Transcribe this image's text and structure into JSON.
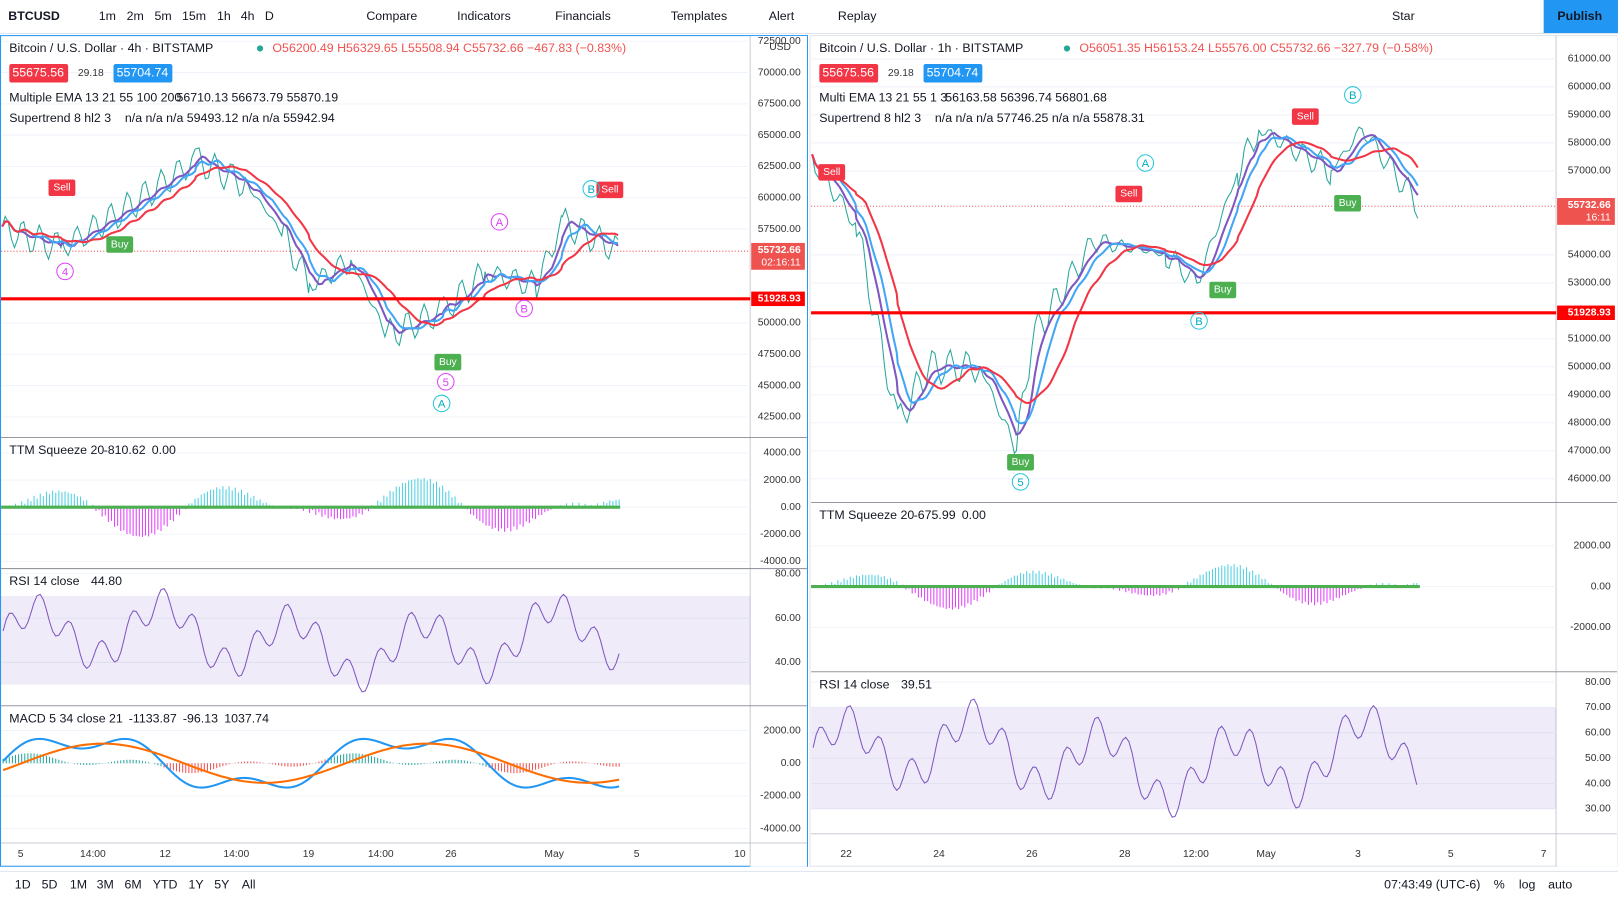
{
  "toolbar": {
    "symbol": "BTCUSD",
    "intervals": [
      "1m",
      "2m",
      "5m",
      "15m",
      "1h",
      "4h",
      "D"
    ],
    "buttons": [
      "Compare",
      "Indicators",
      "Financials",
      "Templates",
      "Alert",
      "Replay"
    ],
    "star": "Star",
    "publish": "Publish"
  },
  "left": {
    "title": "Bitcoin / U.S. Dollar · 4h · BITSTAMP",
    "ohlc": "O56200.49 H56329.65 L55508.94 C55732.66 −467.83 (−0.83%)",
    "bid": "55675.56",
    "spread": "29.18",
    "ask": "55704.74",
    "ema": {
      "name": "Multiple EMA 13 21 55 100 200",
      "values": "56710.13  56673.79  55870.19"
    },
    "supertrend": {
      "name": "Supertrend 8 hl2 3",
      "values": "n/a n/a n/a 59493.12 n/a n/a 55942.94"
    },
    "currency": "USD",
    "price_ticks": [
      {
        "value": 72500,
        "label": "72500.00"
      },
      {
        "value": 70000,
        "label": "70000.00"
      },
      {
        "value": 67500,
        "label": "67500.00"
      },
      {
        "value": 65000,
        "label": "65000.00"
      },
      {
        "value": 62500,
        "label": "62500.00"
      },
      {
        "value": 60000,
        "label": "60000.00"
      },
      {
        "value": 57500,
        "label": "57500.00"
      },
      {
        "value": 50000,
        "label": "50000.00"
      },
      {
        "value": 47500,
        "label": "47500.00"
      },
      {
        "value": 45000,
        "label": "45000.00"
      },
      {
        "value": 42500,
        "label": "42500.00"
      }
    ],
    "last_price": {
      "value": 55732.66,
      "label": "55732.66",
      "countdown": "02:16:11"
    },
    "line_price": {
      "value": 51928.93,
      "label": "51928.93"
    },
    "markers": [
      "Sell",
      "Buy",
      "Buy",
      "Sell",
      "A",
      "B",
      "4",
      "5",
      "B",
      "A"
    ],
    "ttm": {
      "name": "TTM Squeeze 20",
      "values": [
        "-810.62",
        "0.00"
      ],
      "ticks": [
        {
          "value": 4000,
          "label": "4000.00"
        },
        {
          "value": 2000,
          "label": "2000.00"
        },
        {
          "value": 0,
          "label": "0.00"
        },
        {
          "value": -2000,
          "label": "-2000.00"
        },
        {
          "value": -4000,
          "label": "-4000.00"
        }
      ]
    },
    "rsi": {
      "name": "RSI 14 close",
      "value": "44.80",
      "ticks": [
        {
          "value": 80,
          "label": "80.00"
        },
        {
          "value": 60,
          "label": "60.00"
        },
        {
          "value": 40,
          "label": "40.00"
        }
      ]
    },
    "macd": {
      "name": "MACD 5 34 close 21",
      "values": [
        "-1133.87",
        "-96.13",
        "1037.74"
      ],
      "ticks": [
        {
          "value": 2000,
          "label": "2000.00"
        },
        {
          "value": 0,
          "label": "0.00"
        },
        {
          "value": -2000,
          "label": "-2000.00"
        },
        {
          "value": -4000,
          "label": "-4000.00"
        }
      ]
    },
    "time_labels": [
      "5",
      "14:00",
      "12",
      "14:00",
      "19",
      "14:00",
      "26",
      "May",
      "5",
      "10"
    ]
  },
  "right": {
    "title": "Bitcoin / U.S. Dollar · 1h · BITSTAMP",
    "ohlc": "O56051.35 H56153.24 L55576.00 C55732.66 −327.79 (−0.58%)",
    "bid": "55675.56",
    "spread": "29.18",
    "ask": "55704.74",
    "ema": {
      "name": "Multi EMA 13 21 55 1 3",
      "values": "56163.58  56396.74  56801.68"
    },
    "supertrend": {
      "name": "Supertrend 8 hl2 3",
      "values": "n/a n/a n/a 57746.25 n/a n/a 55878.31"
    },
    "price_ticks": [
      {
        "value": 61000,
        "label": "61000.00"
      },
      {
        "value": 60000,
        "label": "60000.00"
      },
      {
        "value": 59000,
        "label": "59000.00"
      },
      {
        "value": 58000,
        "label": "58000.00"
      },
      {
        "value": 57000,
        "label": "57000.00"
      },
      {
        "value": 54000,
        "label": "54000.00"
      },
      {
        "value": 53000,
        "label": "53000.00"
      },
      {
        "value": 51000,
        "label": "51000.00"
      },
      {
        "value": 50000,
        "label": "50000.00"
      },
      {
        "value": 49000,
        "label": "49000.00"
      },
      {
        "value": 48000,
        "label": "48000.00"
      },
      {
        "value": 47000,
        "label": "47000.00"
      },
      {
        "value": 46000,
        "label": "46000.00"
      }
    ],
    "last_price": {
      "value": 55732.66,
      "label": "55732.66",
      "countdown": "16:11"
    },
    "line_price": {
      "value": 51928.93,
      "label": "51928.93"
    },
    "markers": [
      "Sell",
      "Sell",
      "Sell",
      "Buy",
      "Buy",
      "Buy",
      "B",
      "A",
      "B",
      "5"
    ],
    "ttm": {
      "name": "TTM Squeeze 20",
      "values": [
        "-675.99",
        "0.00"
      ],
      "ticks": [
        {
          "value": 2000,
          "label": "2000.00"
        },
        {
          "value": 0,
          "label": "0.00"
        },
        {
          "value": -2000,
          "label": "-2000.00"
        }
      ]
    },
    "rsi": {
      "name": "RSI 14 close",
      "value": "39.51",
      "ticks": [
        {
          "value": 80,
          "label": "80.00"
        },
        {
          "value": 70,
          "label": "70.00"
        },
        {
          "value": 60,
          "label": "60.00"
        },
        {
          "value": 50,
          "label": "50.00"
        },
        {
          "value": 40,
          "label": "40.00"
        },
        {
          "value": 30,
          "label": "30.00"
        }
      ]
    },
    "time_labels": [
      "22",
      "24",
      "26",
      "28",
      "12:00",
      "May",
      "3",
      "5",
      "7"
    ]
  },
  "bottom": {
    "ranges": [
      "1D",
      "5D",
      "1M",
      "3M",
      "6M",
      "YTD",
      "1Y",
      "5Y",
      "All"
    ],
    "clock": "07:43:49 (UTC-6)",
    "options": [
      "%",
      "log",
      "auto"
    ]
  }
}
